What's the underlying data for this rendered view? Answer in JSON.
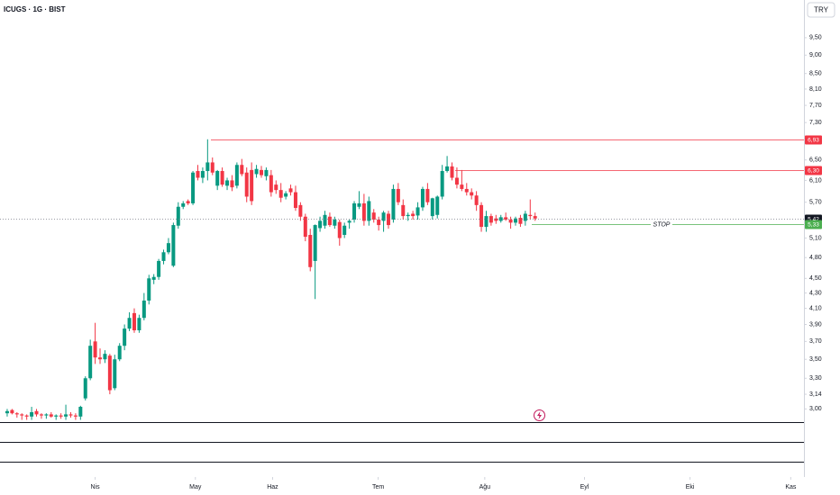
{
  "chart_data": {
    "type": "candlestick",
    "title": "ICUGS · 1G · BIST",
    "currency": "TRY",
    "log_scale": true,
    "up_color": "#089981",
    "down_color": "#f23645",
    "ylim": [
      2.88,
      10.68
    ],
    "yticks": [
      {
        "value": 9.5,
        "label": "9,50"
      },
      {
        "value": 9.0,
        "label": "9,00"
      },
      {
        "value": 8.5,
        "label": "8,50"
      },
      {
        "value": 8.1,
        "label": "8,10"
      },
      {
        "value": 7.7,
        "label": "7,70"
      },
      {
        "value": 7.3,
        "label": "7,30"
      },
      {
        "value": 6.5,
        "label": "6,50"
      },
      {
        "value": 6.1,
        "label": "6,10"
      },
      {
        "value": 5.7,
        "label": "5,70"
      },
      {
        "value": 5.1,
        "label": "5,10"
      },
      {
        "value": 4.8,
        "label": "4,80"
      },
      {
        "value": 4.5,
        "label": "4,50"
      },
      {
        "value": 4.3,
        "label": "4,30"
      },
      {
        "value": 4.1,
        "label": "4,10"
      },
      {
        "value": 3.9,
        "label": "3,90"
      },
      {
        "value": 3.7,
        "label": "3,70"
      },
      {
        "value": 3.5,
        "label": "3,50"
      },
      {
        "value": 3.3,
        "label": "3,30"
      },
      {
        "value": 3.14,
        "label": "3,14"
      },
      {
        "value": 3.0,
        "label": "3,00"
      }
    ],
    "xlim": [
      -1.47,
      163.0
    ],
    "xticks": [
      {
        "value": 18.0,
        "label": "Nis"
      },
      {
        "value": 38.5,
        "label": "May"
      },
      {
        "value": 54.3,
        "label": "Haz"
      },
      {
        "value": 75.9,
        "label": "Tem"
      },
      {
        "value": 97.7,
        "label": "Ağu"
      },
      {
        "value": 118.1,
        "label": "Eyl"
      },
      {
        "value": 139.7,
        "label": "Eki"
      },
      {
        "value": 160.3,
        "label": "Kas"
      }
    ],
    "levels": [
      {
        "value": 6.93,
        "label": "6,93",
        "color": "#f23645"
      },
      {
        "value": 6.3,
        "label": "6,30",
        "color": "#f23645"
      },
      {
        "value": 5.42,
        "label": "5,42",
        "color": "#131722"
      },
      {
        "value": 5.33,
        "label": "5,33",
        "color": "#4caf50",
        "annotation": "STOP"
      }
    ],
    "ohlc": [
      [
        2.96,
        3.0,
        2.93,
        2.98
      ],
      [
        2.99,
        3.0,
        2.95,
        2.96
      ],
      [
        2.96,
        2.97,
        2.92,
        2.95
      ],
      [
        2.95,
        2.96,
        2.9,
        2.94
      ],
      [
        2.94,
        2.95,
        2.9,
        2.93
      ],
      [
        2.93,
        3.02,
        2.9,
        2.97
      ],
      [
        2.98,
        3.0,
        2.93,
        2.95
      ],
      [
        2.95,
        2.96,
        2.91,
        2.94
      ],
      [
        2.94,
        2.96,
        2.91,
        2.95
      ],
      [
        2.95,
        2.97,
        2.92,
        2.93
      ],
      [
        2.93,
        2.95,
        2.9,
        2.94
      ],
      [
        2.94,
        2.96,
        2.91,
        2.93
      ],
      [
        2.93,
        3.04,
        2.9,
        2.95
      ],
      [
        2.95,
        2.97,
        2.92,
        2.94
      ],
      [
        2.94,
        2.96,
        2.9,
        2.93
      ],
      [
        2.93,
        3.03,
        2.9,
        3.02
      ],
      [
        3.1,
        3.32,
        3.08,
        3.3
      ],
      [
        3.3,
        3.72,
        3.28,
        3.65
      ],
      [
        3.7,
        3.92,
        3.45,
        3.52
      ],
      [
        3.52,
        3.62,
        3.45,
        3.5
      ],
      [
        3.5,
        3.6,
        3.46,
        3.56
      ],
      [
        3.54,
        3.56,
        3.14,
        3.18
      ],
      [
        3.2,
        3.55,
        3.18,
        3.5
      ],
      [
        3.5,
        3.68,
        3.48,
        3.65
      ],
      [
        3.65,
        3.9,
        3.6,
        3.85
      ],
      [
        3.85,
        4.05,
        3.82,
        3.98
      ],
      [
        4.04,
        4.1,
        3.8,
        3.83
      ],
      [
        3.83,
        4.02,
        3.8,
        3.98
      ],
      [
        3.98,
        4.3,
        3.95,
        4.2
      ],
      [
        4.2,
        4.55,
        4.15,
        4.5
      ],
      [
        4.48,
        4.56,
        4.42,
        4.52
      ],
      [
        4.52,
        4.78,
        4.48,
        4.75
      ],
      [
        4.75,
        4.92,
        4.7,
        4.88
      ],
      [
        4.88,
        5.1,
        4.85,
        5.02
      ],
      [
        4.68,
        5.35,
        4.66,
        5.31
      ],
      [
        5.3,
        5.7,
        5.25,
        5.62
      ],
      [
        5.62,
        5.72,
        5.58,
        5.68
      ],
      [
        5.72,
        5.75,
        5.65,
        5.68
      ],
      [
        5.68,
        6.28,
        5.65,
        6.25
      ],
      [
        6.28,
        6.4,
        6.1,
        6.15
      ],
      [
        6.15,
        6.35,
        6.05,
        6.28
      ],
      [
        6.28,
        6.93,
        6.1,
        6.45
      ],
      [
        6.45,
        6.55,
        6.2,
        6.25
      ],
      [
        6.0,
        6.3,
        5.92,
        6.28
      ],
      [
        6.28,
        6.35,
        5.98,
        6.02
      ],
      [
        6.0,
        6.15,
        5.92,
        6.1
      ],
      [
        6.1,
        6.2,
        5.9,
        5.97
      ],
      [
        6.0,
        6.45,
        5.95,
        6.4
      ],
      [
        6.4,
        6.52,
        6.18,
        6.22
      ],
      [
        6.25,
        6.35,
        5.7,
        5.8
      ],
      [
        6.3,
        6.45,
        5.65,
        5.72
      ],
      [
        6.22,
        6.4,
        6.15,
        6.32
      ],
      [
        6.3,
        6.38,
        6.15,
        6.2
      ],
      [
        6.18,
        6.35,
        6.1,
        6.3
      ],
      [
        6.2,
        6.3,
        5.8,
        5.88
      ],
      [
        6.02,
        6.1,
        5.85,
        5.92
      ],
      [
        5.92,
        6.05,
        5.7,
        5.78
      ],
      [
        5.8,
        5.9,
        5.75,
        5.86
      ],
      [
        5.95,
        6.02,
        5.82,
        5.88
      ],
      [
        5.88,
        6.0,
        5.55,
        5.6
      ],
      [
        5.65,
        5.7,
        5.38,
        5.45
      ],
      [
        5.45,
        5.5,
        5.05,
        5.12
      ],
      [
        5.15,
        5.25,
        4.6,
        4.66
      ],
      [
        4.75,
        5.32,
        4.22,
        5.31
      ],
      [
        5.26,
        5.45,
        5.2,
        5.38
      ],
      [
        5.3,
        5.55,
        5.25,
        5.48
      ],
      [
        5.45,
        5.52,
        5.28,
        5.31
      ],
      [
        5.3,
        5.45,
        5.25,
        5.4
      ],
      [
        5.36,
        5.4,
        4.98,
        5.1
      ],
      [
        5.15,
        5.35,
        5.1,
        5.3
      ],
      [
        5.35,
        5.4,
        5.25,
        5.38
      ],
      [
        5.4,
        5.72,
        5.35,
        5.68
      ],
      [
        5.62,
        5.9,
        5.58,
        5.68
      ],
      [
        5.68,
        5.85,
        5.3,
        5.38
      ],
      [
        5.38,
        5.8,
        5.3,
        5.72
      ],
      [
        5.52,
        5.58,
        5.35,
        5.4
      ],
      [
        5.4,
        5.45,
        5.22,
        5.31
      ],
      [
        5.38,
        5.55,
        5.2,
        5.52
      ],
      [
        5.5,
        5.55,
        5.25,
        5.31
      ],
      [
        5.4,
        6.02,
        5.35,
        5.94
      ],
      [
        5.94,
        6.05,
        5.65,
        5.7
      ],
      [
        5.65,
        5.75,
        5.4,
        5.46
      ],
      [
        5.46,
        5.52,
        5.38,
        5.48
      ],
      [
        5.5,
        5.55,
        5.4,
        5.46
      ],
      [
        5.47,
        5.7,
        5.4,
        5.61
      ],
      [
        5.61,
        5.98,
        5.55,
        5.94
      ],
      [
        5.94,
        6.05,
        5.65,
        5.7
      ],
      [
        5.46,
        5.78,
        5.4,
        5.77
      ],
      [
        5.48,
        5.82,
        5.42,
        5.8
      ],
      [
        5.8,
        6.4,
        5.75,
        6.28
      ],
      [
        6.28,
        6.58,
        6.25,
        6.37
      ],
      [
        6.37,
        6.45,
        6.1,
        6.15
      ],
      [
        6.15,
        6.35,
        5.95,
        6.02
      ],
      [
        6.02,
        6.3,
        5.9,
        5.94
      ],
      [
        5.94,
        6.05,
        5.82,
        5.88
      ],
      [
        5.88,
        5.95,
        5.75,
        5.82
      ],
      [
        5.82,
        5.9,
        5.55,
        5.65
      ],
      [
        5.65,
        5.7,
        5.2,
        5.28
      ],
      [
        5.28,
        5.55,
        5.2,
        5.46
      ],
      [
        5.46,
        5.5,
        5.3,
        5.35
      ],
      [
        5.42,
        5.48,
        5.33,
        5.38
      ],
      [
        5.38,
        5.48,
        5.35,
        5.44
      ],
      [
        5.44,
        5.52,
        5.38,
        5.4
      ],
      [
        5.4,
        5.45,
        5.25,
        5.35
      ],
      [
        5.35,
        5.45,
        5.3,
        5.42
      ],
      [
        5.43,
        5.48,
        5.28,
        5.33
      ],
      [
        5.38,
        5.55,
        5.3,
        5.5
      ],
      [
        5.48,
        5.75,
        5.4,
        5.46
      ],
      [
        5.46,
        5.52,
        5.38,
        5.42
      ]
    ]
  }
}
